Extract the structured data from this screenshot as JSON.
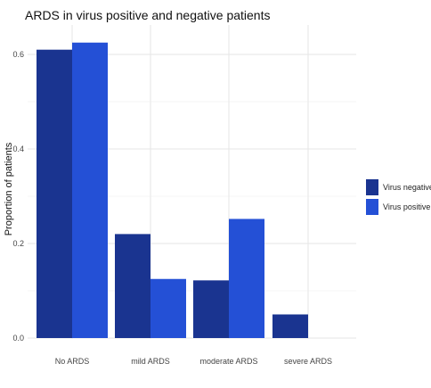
{
  "chart_data": {
    "type": "bar",
    "title": "ARDS in virus positive and negative patients",
    "xlabel": "",
    "ylabel": "Proportion of patients",
    "categories": [
      "No ARDS",
      "mild ARDS",
      "moderate ARDS",
      "severe ARDS"
    ],
    "series": [
      {
        "name": "Virus negative",
        "values": [
          0.61,
          0.22,
          0.122,
          0.05
        ],
        "color": "#1a3490"
      },
      {
        "name": "Virus positive",
        "values": [
          0.625,
          0.125,
          0.252,
          0.0
        ],
        "color": "#2450d6"
      }
    ],
    "yticks": [
      0.0,
      0.2,
      0.4,
      0.6
    ],
    "ytick_labels": [
      "0.0",
      "0.2",
      "0.4",
      "0.6"
    ],
    "ylim": [
      0,
      0.66
    ],
    "grid": true,
    "legend_position": "right"
  }
}
